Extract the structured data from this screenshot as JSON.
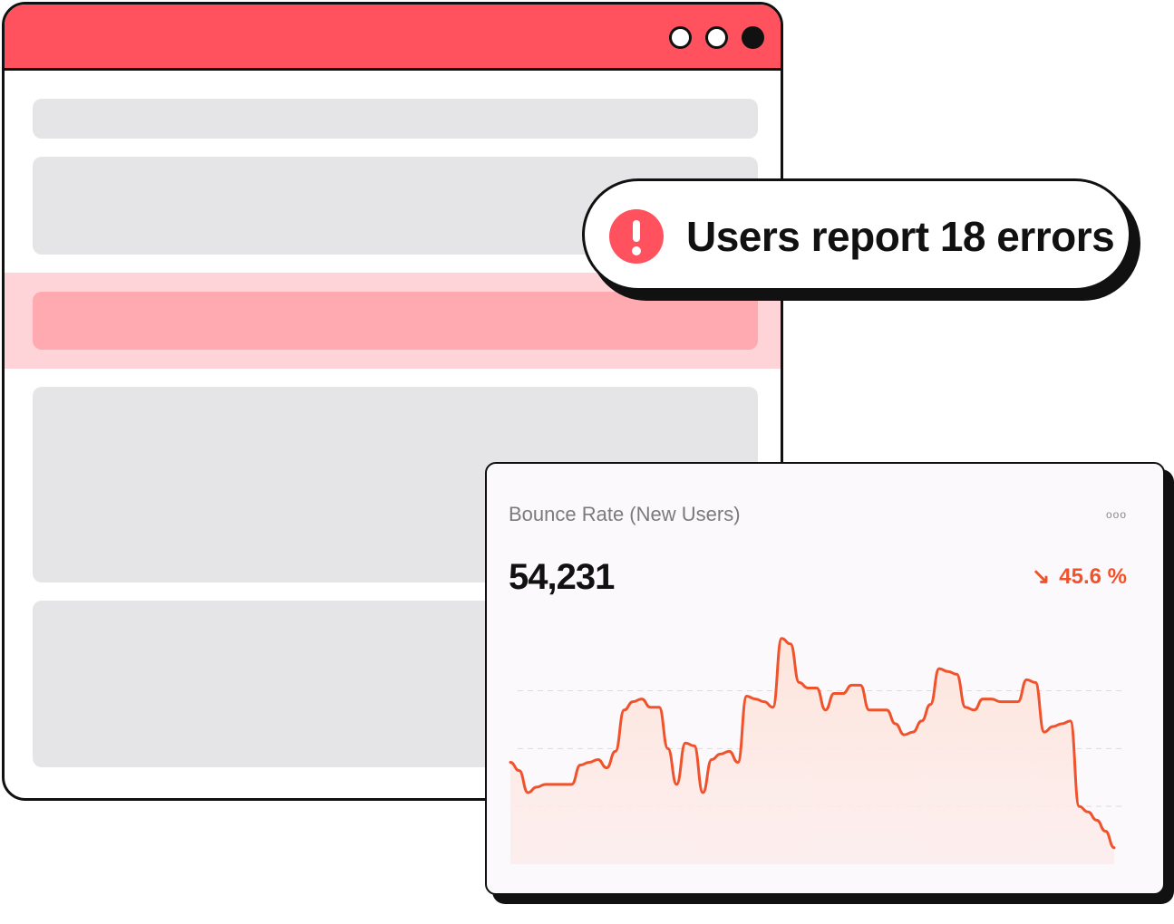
{
  "colors": {
    "accent": "#ff525e",
    "highlight_row": "#ffd4d8",
    "highlight_bar": "#ffaab0",
    "placeholder": "#e5e4e7",
    "trend_down": "#f0522b"
  },
  "browser_window": {
    "controls": [
      "circle",
      "circle",
      "circle-filled"
    ]
  },
  "toast": {
    "icon": "exclamation-circle-icon",
    "message": "Users report 18 errors"
  },
  "metric_card": {
    "title": "Bounce Rate (New Users)",
    "menu_icon": "ooo",
    "value": "54,231",
    "change": "45.6 %",
    "change_icon": "arrow-down-right-icon",
    "change_glyph": "↘"
  },
  "chart_data": {
    "type": "area",
    "title": "",
    "xlabel": "",
    "ylabel": "",
    "ylim": [
      0,
      100
    ],
    "grid": true,
    "series": [
      {
        "values": [
          37,
          34,
          26,
          28,
          29,
          29,
          29,
          29,
          36,
          37,
          38,
          35,
          41,
          56,
          59,
          60,
          57,
          57,
          42,
          29,
          44,
          43,
          26,
          38,
          40,
          41,
          37,
          61,
          60,
          59,
          57,
          82,
          80,
          66,
          64,
          64,
          56,
          62,
          62,
          65,
          65,
          56,
          56,
          56,
          51,
          47,
          48,
          52,
          58,
          71,
          70,
          69,
          57,
          56,
          60,
          60,
          59,
          59,
          59,
          67,
          66,
          48,
          50,
          51,
          52,
          21,
          19,
          16,
          12,
          6
        ]
      }
    ]
  }
}
